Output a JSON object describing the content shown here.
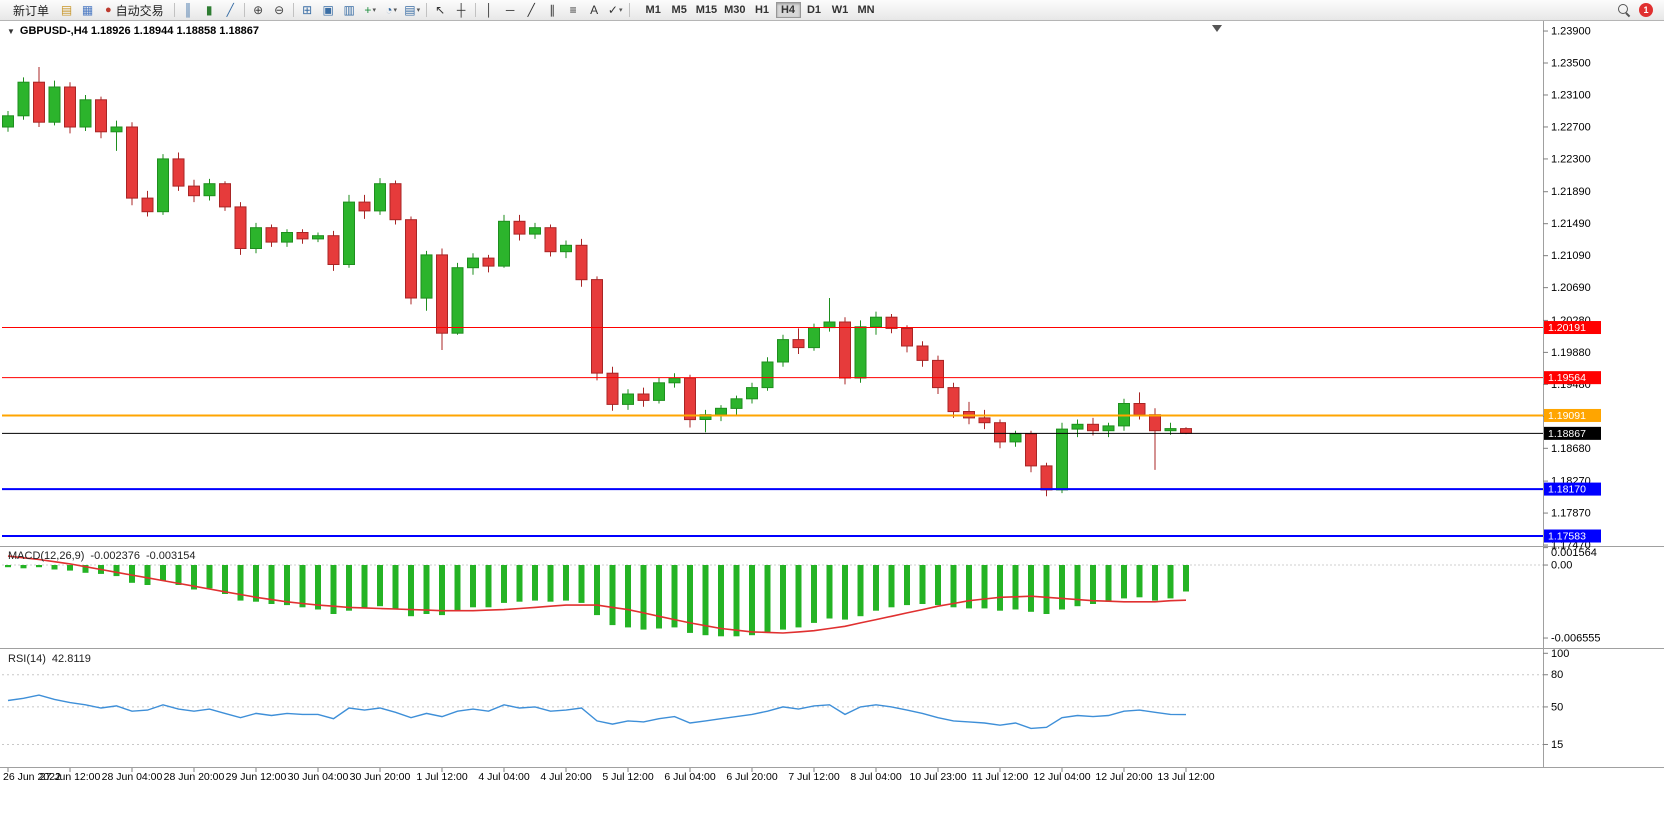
{
  "toolbar": {
    "notification_count": "1",
    "timeframes": [
      "M1",
      "M5",
      "M15",
      "M30",
      "H1",
      "H4",
      "D1",
      "W1",
      "MN"
    ],
    "active_timeframe": "H4",
    "items": [
      {
        "t": "btn",
        "name": "new-order-button",
        "label": "新订单"
      },
      {
        "t": "icon",
        "name": "new-chart-icon",
        "g": "▤",
        "c": "#C8962A"
      },
      {
        "t": "icon",
        "name": "profiles-icon",
        "g": "▦",
        "c": "#4A78C2"
      },
      {
        "t": "btn",
        "name": "autotrading-button",
        "label": "自动交易",
        "icon": {
          "name": "autotrading-icon",
          "g": "●",
          "c": "#BD3A2F"
        }
      },
      {
        "t": "sep"
      },
      {
        "t": "icon",
        "name": "bar-chart-icon",
        "g": "║",
        "c": "#3A6EA5"
      },
      {
        "t": "icon",
        "name": "candlestick-chart-icon",
        "g": "▮",
        "c": "#2E7D32"
      },
      {
        "t": "icon",
        "name": "line-chart-icon",
        "g": "╱",
        "c": "#3A6EA5"
      },
      {
        "t": "sep"
      },
      {
        "t": "icon",
        "name": "zoom-in-icon",
        "g": "⊕",
        "c": "#444444"
      },
      {
        "t": "icon",
        "name": "zoom-out-icon",
        "g": "⊖",
        "c": "#444444"
      },
      {
        "t": "sep"
      },
      {
        "t": "icon",
        "name": "tile-windows-icon",
        "g": "⊞",
        "c": "#3A6EA5"
      },
      {
        "t": "icon",
        "name": "cascade-windows-icon",
        "g": "▣",
        "c": "#3A6EA5"
      },
      {
        "t": "icon",
        "name": "arrange-windows-icon",
        "g": "▥",
        "c": "#3A6EA5"
      },
      {
        "t": "icon",
        "name": "add-indicator-icon",
        "g": "+",
        "c": "#1E8E3E",
        "dd": true
      },
      {
        "t": "icon",
        "name": "period-icon",
        "g": "◔",
        "c": "#3A6EA5",
        "dd": true
      },
      {
        "t": "icon",
        "name": "template-icon",
        "g": "▤",
        "c": "#3A6EA5",
        "dd": true
      },
      {
        "t": "sep"
      },
      {
        "t": "icon",
        "name": "cursor-icon",
        "g": "↖",
        "c": "#333333"
      },
      {
        "t": "icon",
        "name": "crosshair-icon",
        "g": "┼",
        "c": "#333333"
      },
      {
        "t": "sep"
      },
      {
        "t": "icon",
        "name": "vertical-line-icon",
        "g": "│",
        "c": "#333333"
      },
      {
        "t": "icon",
        "name": "horizontal-line-icon",
        "g": "─",
        "c": "#333333"
      },
      {
        "t": "icon",
        "name": "trendline-icon",
        "g": "╱",
        "c": "#333333"
      },
      {
        "t": "icon",
        "name": "channel-icon",
        "g": "∥",
        "c": "#333333"
      },
      {
        "t": "icon",
        "name": "fibonacci-icon",
        "g": "≡",
        "c": "#333333"
      },
      {
        "t": "icon",
        "name": "text-label-icon",
        "g": "A",
        "c": "#333333"
      },
      {
        "t": "icon",
        "name": "arrows-objects-icon",
        "g": "✓",
        "c": "#333333",
        "dd": true
      },
      {
        "t": "sep"
      }
    ]
  },
  "chart_data": {
    "type": "candlestick",
    "symbol": "GBPUSD-",
    "timeframe": "H4",
    "header_text": "GBPUSD-,H4  1.18926 1.18944 1.18858 1.18867",
    "ohlc_current": {
      "open": 1.18926,
      "high": 1.18944,
      "low": 1.18858,
      "close": 1.18867
    },
    "ylim": [
      1.17458,
      1.24013
    ],
    "price_axis_ticks": [
      "1.23900",
      "1.23500",
      "1.23100",
      "1.22700",
      "1.22300",
      "1.21890",
      "1.21490",
      "1.21090",
      "1.20690",
      "1.20280",
      "1.19880",
      "1.19480",
      "1.19080",
      "1.18680",
      "1.18270",
      "1.17870",
      "1.17470"
    ],
    "time_axis": [
      "26 Jun 2022",
      "27 Jun 12:00",
      "28 Jun 04:00",
      "28 Jun 20:00",
      "29 Jun 12:00",
      "30 Jun 04:00",
      "30 Jun 20:00",
      "1 Jul 12:00",
      "4 Jul 04:00",
      "4 Jul 20:00",
      "5 Jul 12:00",
      "6 Jul 04:00",
      "6 Jul 20:00",
      "7 Jul 12:00",
      "8 Jul 04:00",
      "10 Jul 23:00",
      "11 Jul 12:00",
      "12 Jul 04:00",
      "12 Jul 20:00",
      "13 Jul 12:00"
    ],
    "colors": {
      "bull": "#2CB42C",
      "bull_dark": "#1E8E1E",
      "bear": "#E63B3B",
      "bear_dark": "#A82525"
    },
    "hlines": [
      {
        "price": 1.20191,
        "label": "1.20191",
        "color": "#FF0000",
        "width": 1,
        "role": "level"
      },
      {
        "price": 1.19564,
        "label": "1.19564",
        "color": "#FF0000",
        "width": 1,
        "role": "level"
      },
      {
        "price": 1.19091,
        "label": "1.19091",
        "color": "#FFA500",
        "width": 2,
        "role": "level"
      },
      {
        "price": 1.18867,
        "label": "1.18867",
        "color": "#000000",
        "width": 1,
        "role": "bid"
      },
      {
        "price": 1.1817,
        "label": "1.18170",
        "color": "#0000FF",
        "width": 2,
        "role": "level"
      },
      {
        "price": 1.17583,
        "label": "1.17583",
        "color": "#0000FF",
        "width": 2,
        "role": "level"
      }
    ],
    "candles": [
      [
        1.227,
        1.229,
        1.2264,
        1.2284
      ],
      [
        1.2284,
        1.2332,
        1.2279,
        1.2326
      ],
      [
        1.2326,
        1.2345,
        1.227,
        1.2276
      ],
      [
        1.2276,
        1.2328,
        1.2272,
        1.232
      ],
      [
        1.232,
        1.2326,
        1.2262,
        1.227
      ],
      [
        1.227,
        1.231,
        1.2265,
        1.2304
      ],
      [
        1.2304,
        1.2308,
        1.2256,
        1.2264
      ],
      [
        1.2264,
        1.2278,
        1.224,
        1.227
      ],
      [
        1.227,
        1.2276,
        1.2172,
        1.2181
      ],
      [
        1.2181,
        1.219,
        1.2158,
        1.2164
      ],
      [
        1.2164,
        1.2236,
        1.216,
        1.223
      ],
      [
        1.223,
        1.2238,
        1.219,
        1.2196
      ],
      [
        1.2196,
        1.2204,
        1.2176,
        1.2184
      ],
      [
        1.2184,
        1.2205,
        1.2178,
        1.2199
      ],
      [
        1.2199,
        1.2202,
        1.2165,
        1.217
      ],
      [
        1.217,
        1.2176,
        1.211,
        1.2118
      ],
      [
        1.2118,
        1.215,
        1.2112,
        1.2144
      ],
      [
        1.2144,
        1.2148,
        1.212,
        1.2126
      ],
      [
        1.2126,
        1.2142,
        1.212,
        1.2138
      ],
      [
        1.2138,
        1.2142,
        1.2124,
        1.213
      ],
      [
        1.213,
        1.2138,
        1.2126,
        1.2134
      ],
      [
        1.2134,
        1.214,
        1.209,
        1.2098
      ],
      [
        1.2098,
        1.2185,
        1.2094,
        1.2176
      ],
      [
        1.2176,
        1.2185,
        1.2155,
        1.2165
      ],
      [
        1.2165,
        1.2206,
        1.216,
        1.2199
      ],
      [
        1.2199,
        1.2203,
        1.2148,
        1.2154
      ],
      [
        1.2154,
        1.2158,
        1.2048,
        1.2056
      ],
      [
        1.2056,
        1.2115,
        1.204,
        1.211
      ],
      [
        1.211,
        1.2118,
        1.1991,
        1.2012
      ],
      [
        1.2012,
        1.21,
        1.201,
        1.2094
      ],
      [
        1.2094,
        1.2112,
        1.2085,
        1.2106
      ],
      [
        1.2106,
        1.211,
        1.2088,
        1.2096
      ],
      [
        1.2096,
        1.216,
        1.2094,
        1.2152
      ],
      [
        1.2152,
        1.216,
        1.2128,
        1.2136
      ],
      [
        1.2136,
        1.215,
        1.213,
        1.2144
      ],
      [
        1.2144,
        1.2148,
        1.2108,
        1.2114
      ],
      [
        1.2114,
        1.2128,
        1.2106,
        1.2122
      ],
      [
        1.2122,
        1.213,
        1.207,
        1.2079
      ],
      [
        1.2079,
        1.2083,
        1.1953,
        1.1962
      ],
      [
        1.1962,
        1.197,
        1.1915,
        1.1923
      ],
      [
        1.1923,
        1.1942,
        1.1916,
        1.1936
      ],
      [
        1.1936,
        1.1944,
        1.192,
        1.1928
      ],
      [
        1.1928,
        1.1956,
        1.1924,
        1.195
      ],
      [
        1.195,
        1.1962,
        1.1944,
        1.1956
      ],
      [
        1.1956,
        1.196,
        1.1894,
        1.1904
      ],
      [
        1.1904,
        1.1916,
        1.1888,
        1.191
      ],
      [
        1.191,
        1.1922,
        1.1902,
        1.1918
      ],
      [
        1.1918,
        1.1934,
        1.191,
        1.193
      ],
      [
        1.193,
        1.195,
        1.1924,
        1.1944
      ],
      [
        1.1944,
        1.1982,
        1.194,
        1.1976
      ],
      [
        1.1976,
        1.201,
        1.197,
        1.2004
      ],
      [
        1.2004,
        1.2018,
        1.1986,
        1.1994
      ],
      [
        1.1994,
        1.2024,
        1.199,
        1.2019
      ],
      [
        1.2019,
        1.2056,
        1.2014,
        1.2026
      ],
      [
        1.2026,
        1.2032,
        1.1948,
        1.1956
      ],
      [
        1.1956,
        1.2028,
        1.195,
        1.202
      ],
      [
        1.202,
        1.2039,
        1.201,
        1.2032
      ],
      [
        1.2032,
        1.2036,
        1.2012,
        1.2018
      ],
      [
        1.2018,
        1.2022,
        1.1988,
        1.1996
      ],
      [
        1.1996,
        1.2002,
        1.197,
        1.1978
      ],
      [
        1.1978,
        1.1984,
        1.1936,
        1.1944
      ],
      [
        1.1944,
        1.195,
        1.1906,
        1.1914
      ],
      [
        1.1914,
        1.1926,
        1.1898,
        1.1906
      ],
      [
        1.1906,
        1.1916,
        1.1892,
        1.19
      ],
      [
        1.19,
        1.1904,
        1.1868,
        1.1876
      ],
      [
        1.1876,
        1.189,
        1.187,
        1.1886
      ],
      [
        1.1886,
        1.189,
        1.1838,
        1.1846
      ],
      [
        1.1846,
        1.185,
        1.1808,
        1.1816
      ],
      [
        1.1816,
        1.19,
        1.1812,
        1.1892
      ],
      [
        1.1892,
        1.1904,
        1.1882,
        1.1898
      ],
      [
        1.1898,
        1.1906,
        1.1884,
        1.189
      ],
      [
        1.189,
        1.19,
        1.1882,
        1.1896
      ],
      [
        1.1896,
        1.193,
        1.189,
        1.1924
      ],
      [
        1.1924,
        1.1938,
        1.1904,
        1.191
      ],
      [
        1.191,
        1.1918,
        1.1841,
        1.189
      ],
      [
        1.189,
        1.19,
        1.1885,
        1.18926
      ],
      [
        1.18926,
        1.18944,
        1.18858,
        1.18867
      ]
    ],
    "indicators": {
      "macd": {
        "label": "MACD(12,26,9)",
        "value_macd": "-0.002376",
        "value_signal": "-0.003154",
        "histogram_color": "#24B324",
        "signal_color": "#E03030",
        "ylim": [
          -0.00745,
          0.00162
        ],
        "axis_ticks": [
          {
            "label": "0.001564",
            "v": 0.001564
          },
          {
            "label": "0.00",
            "v": 0
          },
          {
            "label": "-0.006555",
            "v": -0.006555
          }
        ],
        "histogram": [
          -0.0002,
          -0.0003,
          -0.0002,
          -0.0004,
          -0.0005,
          -0.0007,
          -0.0008,
          -0.001,
          -0.0016,
          -0.0018,
          -0.0014,
          -0.0018,
          -0.0022,
          -0.0021,
          -0.0026,
          -0.0032,
          -0.0033,
          -0.0035,
          -0.0036,
          -0.0038,
          -0.004,
          -0.0044,
          -0.0041,
          -0.0039,
          -0.0037,
          -0.004,
          -0.0046,
          -0.0044,
          -0.0045,
          -0.0041,
          -0.0038,
          -0.0038,
          -0.0034,
          -0.0033,
          -0.0032,
          -0.0033,
          -0.0032,
          -0.0034,
          -0.0045,
          -0.0054,
          -0.0056,
          -0.0058,
          -0.0057,
          -0.0056,
          -0.0061,
          -0.0063,
          -0.0064,
          -0.0064,
          -0.0063,
          -0.0061,
          -0.0058,
          -0.0056,
          -0.0052,
          -0.0048,
          -0.0049,
          -0.0046,
          -0.0041,
          -0.0038,
          -0.0036,
          -0.0035,
          -0.0036,
          -0.0038,
          -0.0039,
          -0.0039,
          -0.0041,
          -0.004,
          -0.0042,
          -0.0044,
          -0.004,
          -0.0037,
          -0.0035,
          -0.0033,
          -0.003,
          -0.0029,
          -0.0032,
          -0.003,
          -0.002376
        ],
        "signal": [
          0.0008,
          0.00065,
          0.0005,
          0.0003,
          0.0001,
          -0.00015,
          -0.0004,
          -0.00065,
          -0.0009,
          -0.00115,
          -0.0014,
          -0.00165,
          -0.0019,
          -0.00215,
          -0.0024,
          -0.00265,
          -0.0029,
          -0.0031,
          -0.0033,
          -0.00345,
          -0.0036,
          -0.0037,
          -0.0038,
          -0.00385,
          -0.0039,
          -0.00395,
          -0.004,
          -0.00405,
          -0.0041,
          -0.0041,
          -0.0041,
          -0.00405,
          -0.004,
          -0.0039,
          -0.0038,
          -0.0037,
          -0.0036,
          -0.0036,
          -0.0036,
          -0.0038,
          -0.004,
          -0.0043,
          -0.0046,
          -0.0049,
          -0.0052,
          -0.00545,
          -0.0057,
          -0.00585,
          -0.006,
          -0.00605,
          -0.0061,
          -0.006,
          -0.0059,
          -0.0057,
          -0.0055,
          -0.0052,
          -0.0049,
          -0.0046,
          -0.0043,
          -0.004,
          -0.0037,
          -0.00345,
          -0.0032,
          -0.00305,
          -0.0029,
          -0.00285,
          -0.0028,
          -0.0029,
          -0.003,
          -0.0031,
          -0.0032,
          -0.00325,
          -0.0033,
          -0.0033,
          -0.0033,
          -0.0032,
          -0.003154
        ]
      },
      "rsi": {
        "label": "RSI(14)",
        "value_text": "42.8119",
        "line_color": "#3E8FD8",
        "ylim": [
          0,
          100
        ],
        "levels": [
          80,
          50,
          15
        ],
        "axis_ticks": [
          {
            "label": "100",
            "v": 100
          },
          {
            "label": "80",
            "v": 80
          },
          {
            "label": "50",
            "v": 50
          },
          {
            "label": "15",
            "v": 15
          }
        ],
        "values": [
          56,
          58,
          61,
          57,
          54,
          52,
          49,
          51,
          46,
          47,
          52,
          48,
          46,
          48,
          44,
          40,
          44,
          42,
          44,
          43,
          43,
          39,
          49,
          47,
          49,
          45,
          40,
          44,
          41,
          46,
          48,
          46,
          52,
          49,
          50,
          46,
          47,
          49,
          37,
          34,
          37,
          36,
          39,
          41,
          35,
          37,
          39,
          41,
          43,
          46,
          50,
          48,
          51,
          52,
          43,
          50,
          52,
          50,
          47,
          44,
          40,
          37,
          36,
          35,
          33,
          35,
          30,
          31,
          40,
          42,
          41,
          42,
          46,
          47,
          45,
          43,
          42.8119
        ]
      }
    }
  }
}
